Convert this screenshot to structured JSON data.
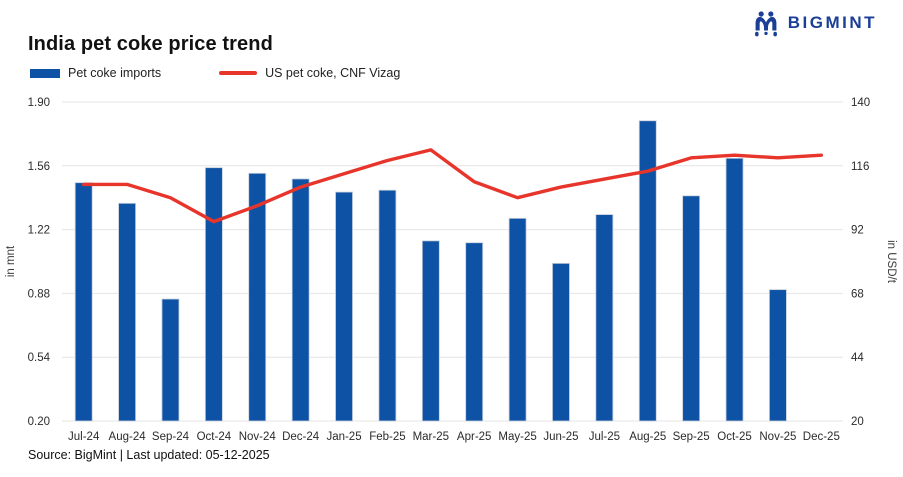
{
  "logo": {
    "text": "BIGMINT"
  },
  "title": "India pet coke price trend",
  "legend": {
    "bar_label": "Pet coke imports",
    "line_label": "US pet coke, CNF Vizag"
  },
  "footer": {
    "source": "Source: BigMint | Last updated: 05-12-2025"
  },
  "colors": {
    "bar": "#0e52a5",
    "bar_border": "#c7cfda",
    "line": "#e8352c",
    "logo": "#1b3f97",
    "grid": "#e4e4e4",
    "tick_text": "#2b2b2b",
    "axis_title_text": "#3c3c3c"
  },
  "chart_data": {
    "type": "bar+line combo",
    "title": "India pet coke price trend",
    "categories": [
      "Jul-24",
      "Aug-24",
      "Sep-24",
      "Oct-24",
      "Nov-24",
      "Dec-24",
      "Jan-25",
      "Feb-25",
      "Mar-25",
      "Apr-25",
      "May-25",
      "Jun-25",
      "Jul-25",
      "Aug-25",
      "Sep-25",
      "Oct-25",
      "Nov-25",
      "Dec-25"
    ],
    "series": [
      {
        "name": "Pet coke imports",
        "type": "bar",
        "axis": "left",
        "unit": "mnt",
        "values": [
          1.47,
          1.36,
          0.85,
          1.55,
          1.52,
          1.49,
          1.42,
          1.43,
          1.16,
          1.15,
          1.28,
          1.04,
          1.3,
          1.8,
          1.4,
          1.6,
          0.9,
          null
        ]
      },
      {
        "name": "US pet coke, CNF Vizag",
        "type": "line",
        "axis": "right",
        "unit": "USD/t",
        "values": [
          109,
          109,
          104,
          95,
          101,
          108,
          113,
          118,
          122,
          110,
          104,
          108,
          111,
          114,
          119,
          120,
          119,
          120
        ]
      }
    ],
    "left_axis": {
      "label": "in mnt",
      "min": 0.2,
      "max": 1.9,
      "ticks": [
        "1.90",
        "1.56",
        "1.22",
        "0.88",
        "0.54",
        "0.20"
      ]
    },
    "right_axis": {
      "label": "in USD/t",
      "min": 20,
      "max": 140,
      "ticks": [
        "140",
        "116",
        "92",
        "68",
        "44",
        "20"
      ]
    },
    "grid": "horizontal only",
    "legend_position": "top-left"
  }
}
